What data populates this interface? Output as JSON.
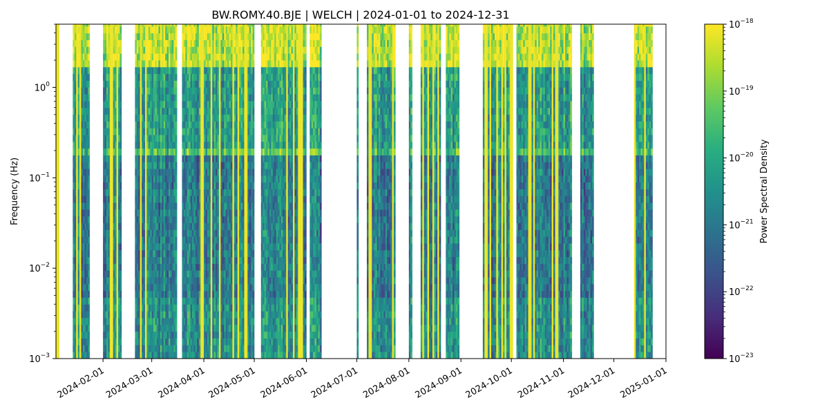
{
  "chart_data": {
    "type": "heatmap",
    "title": "BW.ROMY.40.BJE | WELCH | 2024-01-01 to 2024-12-31",
    "xlabel": "",
    "ylabel": "Frequency (Hz)",
    "x_scale": "date",
    "xlim": [
      "2024-01-04",
      "2025-01-01"
    ],
    "x_ticks": [
      "2024-02-01",
      "2024-03-01",
      "2024-04-01",
      "2024-05-01",
      "2024-06-01",
      "2024-07-01",
      "2024-08-01",
      "2024-09-01",
      "2024-10-01",
      "2024-11-01",
      "2024-12-01",
      "2025-01-01"
    ],
    "y_scale": "log",
    "ylim": [
      0.001,
      5
    ],
    "y_ticks": [
      {
        "value": 0.001,
        "base": "10",
        "exp": "−3"
      },
      {
        "value": 0.01,
        "base": "10",
        "exp": "−2"
      },
      {
        "value": 0.1,
        "base": "10",
        "exp": "−1"
      },
      {
        "value": 1,
        "base": "10",
        "exp": "0"
      }
    ],
    "colorbar": {
      "label": "Power Spectral Density",
      "colormap": "viridis",
      "scale": "log",
      "range": [
        1e-23,
        1e-18
      ],
      "ticks": [
        {
          "value": 1e-23,
          "base": "10",
          "exp": "−23"
        },
        {
          "value": 1e-22,
          "base": "10",
          "exp": "−22"
        },
        {
          "value": 1e-21,
          "base": "10",
          "exp": "−21"
        },
        {
          "value": 1e-20,
          "base": "10",
          "exp": "−20"
        },
        {
          "value": 1e-19,
          "base": "10",
          "exp": "−19"
        },
        {
          "value": 1e-18,
          "base": "10",
          "exp": "−18"
        }
      ]
    },
    "colors": [
      "#440154",
      "#3b528b",
      "#21918c",
      "#5ec962",
      "#fde725"
    ],
    "data_periods": [
      [
        "2024-01-04",
        "2024-01-06"
      ],
      [
        "2024-01-14",
        "2024-01-24"
      ],
      [
        "2024-02-01",
        "2024-02-12"
      ],
      [
        "2024-02-20",
        "2024-03-16"
      ],
      [
        "2024-03-19",
        "2024-05-01"
      ],
      [
        "2024-05-05",
        "2024-06-01"
      ],
      [
        "2024-06-03",
        "2024-06-10"
      ],
      [
        "2024-07-01",
        "2024-07-02"
      ],
      [
        "2024-07-07",
        "2024-07-24"
      ],
      [
        "2024-08-01",
        "2024-08-03"
      ],
      [
        "2024-08-08",
        "2024-08-20"
      ],
      [
        "2024-08-23",
        "2024-08-31"
      ],
      [
        "2024-09-14",
        "2024-10-02"
      ],
      [
        "2024-10-04",
        "2024-11-06"
      ],
      [
        "2024-11-11",
        "2024-11-19"
      ],
      [
        "2024-12-13",
        "2024-12-24"
      ]
    ],
    "grid": false,
    "legend": "none"
  }
}
